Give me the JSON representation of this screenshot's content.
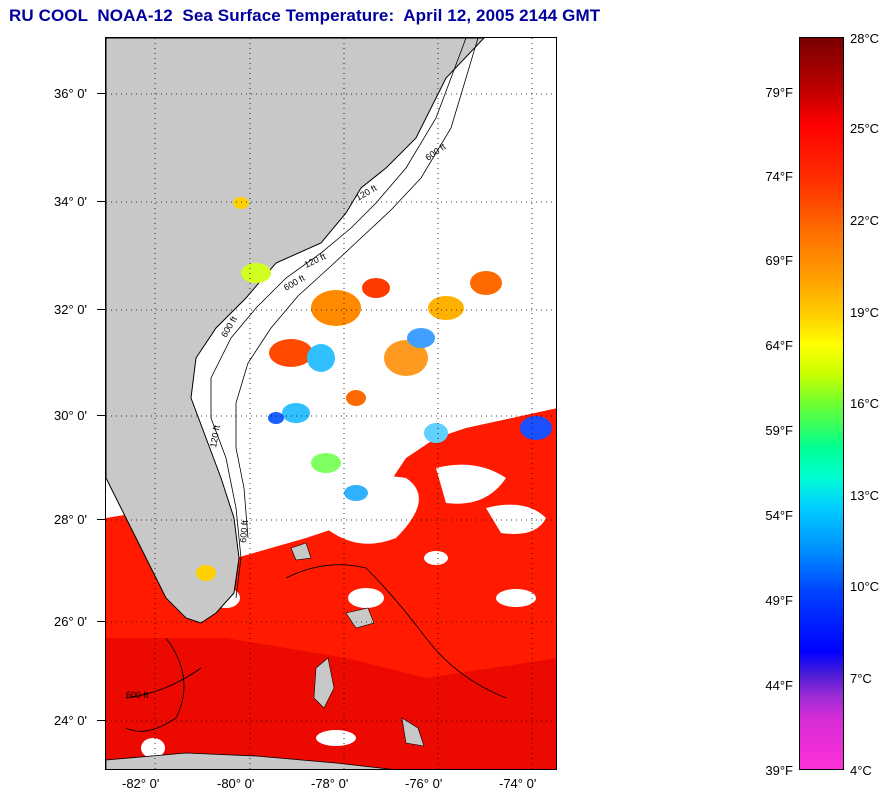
{
  "title": "RU COOL  NOAA-12  Sea Surface Temperature:  April 12, 2005 2144 GMT",
  "map": {
    "lat_labels": [
      "36° 0'",
      "34° 0'",
      "32° 0'",
      "30° 0'",
      "28° 0'",
      "26° 0'",
      "24° 0'"
    ],
    "lon_labels": [
      "-82° 0'",
      "-80° 0'",
      "-78° 0'",
      "-76° 0'",
      "-74° 0'"
    ],
    "contour_labels": [
      "600 ft",
      "120 ft",
      "600 ft",
      "120 ft",
      "600 ft",
      "120 ft",
      "600 ft",
      "600 ft"
    ],
    "colors": {
      "land": "#c8c8c8",
      "ocean_warm": "#ff1e00",
      "no_data": "#ffffff"
    }
  },
  "colorbar": {
    "celsius_labels": [
      "28°C",
      "25°C",
      "22°C",
      "19°C",
      "16°C",
      "13°C",
      "10°C",
      "7°C",
      "4°C"
    ],
    "fahrenheit_labels": [
      "79°F",
      "74°F",
      "69°F",
      "64°F",
      "59°F",
      "54°F",
      "49°F",
      "44°F",
      "39°F"
    ]
  }
}
